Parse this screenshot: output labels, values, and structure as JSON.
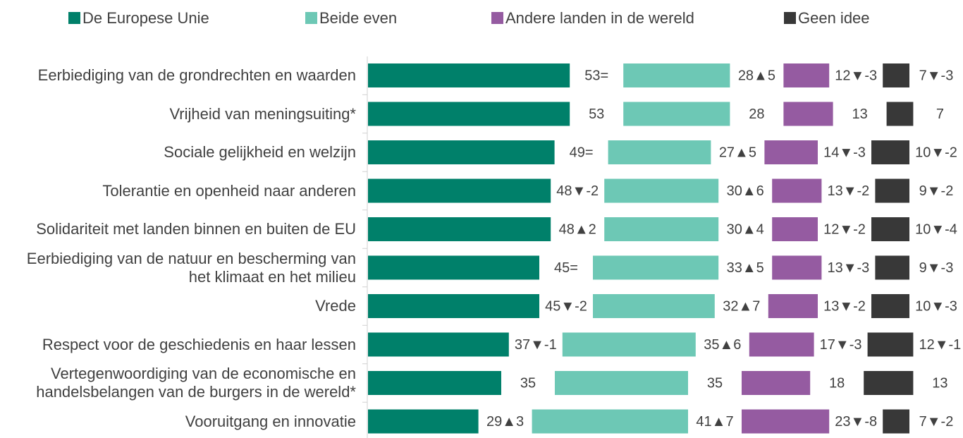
{
  "chart_data": {
    "type": "bar",
    "orientation": "horizontal",
    "stacked": true,
    "categories": [
      "Eerbiediging van de grondrechten en waarden",
      "Vrijheid van meningsuiting*",
      "Sociale gelijkheid en welzijn",
      "Tolerantie en openheid naar anderen",
      "Solidariteit met landen binnen en buiten de EU",
      "Eerbiediging van de natuur en bescherming van het klimaat en het milieu",
      "Vrede",
      "Respect voor de geschiedenis en haar lessen",
      "Vertegenwoordiging van de economische en handelsbelangen van de burgers in de wereld*",
      "Vooruitgang en innovatie"
    ],
    "xlim": [
      0,
      100
    ],
    "legend": "top",
    "series": [
      {
        "name": "De Europese Unie",
        "color": "#00806a",
        "values": [
          53,
          53,
          49,
          48,
          48,
          45,
          45,
          37,
          35,
          29
        ],
        "value_labels": [
          "53=",
          "53",
          "49=",
          "48▼-2",
          "48▲2",
          "45=",
          "45▼-2",
          "37▼-1",
          "35",
          "29▲3"
        ]
      },
      {
        "name": "Beide even",
        "color": "#6dc8b5",
        "values": [
          28,
          28,
          27,
          30,
          30,
          33,
          32,
          35,
          35,
          41
        ],
        "value_labels": [
          "28▲5",
          "28",
          "27▲5",
          "30▲6",
          "30▲4",
          "33▲5",
          "32▲7",
          "35▲6",
          "35",
          "41▲7"
        ]
      },
      {
        "name": "Andere landen in de wereld",
        "color": "#955ba1",
        "values": [
          12,
          13,
          14,
          13,
          12,
          13,
          13,
          17,
          18,
          23
        ],
        "value_labels": [
          "12▼-3",
          "13",
          "14▼-3",
          "13▼-2",
          "12▼-2",
          "13▼-3",
          "13▼-2",
          "17▼-3",
          "18",
          "23▼-8"
        ]
      },
      {
        "name": "Geen idee",
        "color": "#383838",
        "values": [
          7,
          7,
          10,
          9,
          10,
          9,
          10,
          12,
          13,
          7
        ],
        "value_labels": [
          "7▼-3",
          "7",
          "10▼-2",
          "9▼-2",
          "10▼-4",
          "9▼-3",
          "10▼-3",
          "12▼-1",
          "13",
          "7▼-2"
        ]
      }
    ]
  }
}
